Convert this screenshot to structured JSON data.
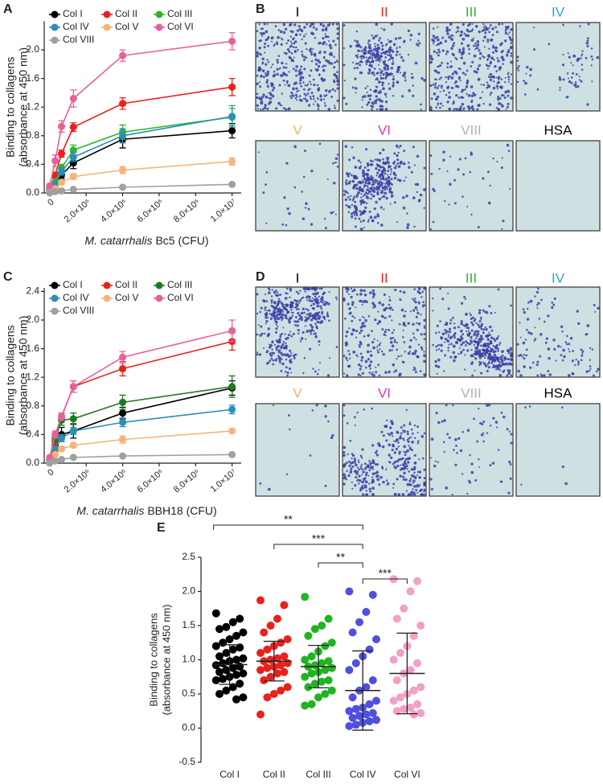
{
  "chart_data": [
    {
      "type": "line",
      "panel": "A",
      "ylabel": [
        "Binding to collagens",
        "(absorbance at 450 nm)"
      ],
      "xlabel_italic": "M. catarrhalis",
      "xlabel": "Bc5 (CFU)",
      "x": [
        0,
        300000,
        650000,
        1300000,
        4000000,
        10000000
      ],
      "xlim": [
        -300000,
        10500000
      ],
      "xticks": [
        0,
        {
          "value": 2000000,
          "label": "2.0×10⁶"
        },
        {
          "value": 4000000,
          "label": "4.0×10⁶"
        },
        {
          "value": 6000000,
          "label": "6.0×10⁶"
        },
        {
          "value": 8000000,
          "label": "8.0×10⁶"
        },
        {
          "value": 10000000,
          "label": "1.0×10⁷"
        }
      ],
      "ylim": [
        0,
        2.4
      ],
      "yticks": [
        {
          "value": 0,
          "label": "0.0"
        },
        0.4,
        0.8,
        1.2,
        1.6,
        {
          "value": 2,
          "label": "2.0"
        }
      ],
      "series": [
        {
          "name": "Col I",
          "color": "#000000",
          "values": [
            0.02,
            0.1,
            0.25,
            0.42,
            0.75,
            0.87
          ],
          "errors": [
            0.01,
            0.03,
            0.05,
            0.08,
            0.12,
            0.1
          ]
        },
        {
          "name": "Col II",
          "color": "#e8211d",
          "values": [
            0.05,
            0.25,
            0.55,
            0.92,
            1.25,
            1.48
          ],
          "errors": [
            0.02,
            0.04,
            0.05,
            0.06,
            0.08,
            0.12
          ]
        },
        {
          "name": "Col III",
          "color": "#2db52d",
          "values": [
            0.03,
            0.15,
            0.35,
            0.6,
            0.85,
            1.06
          ],
          "errors": [
            0.01,
            0.03,
            0.05,
            0.07,
            0.1,
            0.12
          ]
        },
        {
          "name": "Col IV",
          "color": "#2a8fb5",
          "values": [
            0.03,
            0.12,
            0.3,
            0.5,
            0.8,
            1.07
          ],
          "errors": [
            0.01,
            0.03,
            0.05,
            0.06,
            0.1,
            0.15
          ]
        },
        {
          "name": "Col V",
          "color": "#f6b47a",
          "values": [
            0.01,
            0.06,
            0.15,
            0.23,
            0.32,
            0.44
          ],
          "errors": [
            0.01,
            0.02,
            0.03,
            0.04,
            0.05,
            0.05
          ]
        },
        {
          "name": "Col VI",
          "color": "#e8609b",
          "values": [
            0.1,
            0.45,
            0.93,
            1.32,
            1.92,
            2.12
          ],
          "errors": [
            0.02,
            0.08,
            0.08,
            0.12,
            0.08,
            0.12
          ]
        },
        {
          "name": "Col VIII",
          "color": "#a0a0a0",
          "values": [
            0,
            0.02,
            0.03,
            0.05,
            0.08,
            0.12
          ],
          "errors": [
            0.01,
            0.01,
            0.01,
            0.01,
            0.02,
            0.02
          ]
        }
      ]
    },
    {
      "type": "line",
      "panel": "C",
      "ylabel": [
        "Binding  to collagens",
        "(absorbance at 450 nm)"
      ],
      "xlabel_italic": "M. catarrhalis",
      "xlabel": "BBH18 (CFU)",
      "x": [
        0,
        300000,
        650000,
        1300000,
        4000000,
        10000000
      ],
      "xlim": [
        -300000,
        10500000
      ],
      "xticks": [
        0,
        {
          "value": 2000000,
          "label": "2.0×10⁶"
        },
        {
          "value": 4000000,
          "label": "4.0×10⁶"
        },
        {
          "value": 6000000,
          "label": "6.0×10⁶"
        },
        {
          "value": 8000000,
          "label": "8.0×10⁶"
        },
        {
          "value": 10000000,
          "label": "1.0×10⁷"
        }
      ],
      "ylim": [
        0,
        2.45
      ],
      "yticks": [
        {
          "value": 0,
          "label": "0.0"
        },
        0.4,
        0.8,
        1.2,
        1.6,
        {
          "value": 2,
          "label": "2.0"
        },
        2.4
      ],
      "series": [
        {
          "name": "Col I",
          "color": "#000000",
          "values": [
            0.02,
            0.25,
            0.4,
            0.45,
            0.7,
            1.05
          ],
          "errors": [
            0.01,
            0.05,
            0.1,
            0.1,
            0.08,
            0.1
          ]
        },
        {
          "name": "Col II",
          "color": "#e8211d",
          "values": [
            0.05,
            0.3,
            0.65,
            1.07,
            1.32,
            1.7
          ],
          "errors": [
            0.02,
            0.04,
            0.05,
            0.08,
            0.1,
            0.12
          ]
        },
        {
          "name": "Col III",
          "color": "#1e7a1e",
          "values": [
            0.03,
            0.35,
            0.6,
            0.62,
            0.85,
            1.07
          ],
          "errors": [
            0.01,
            0.05,
            0.07,
            0.08,
            0.1,
            0.15
          ]
        },
        {
          "name": "Col IV",
          "color": "#2a8fb5",
          "values": [
            0.03,
            0.2,
            0.35,
            0.45,
            0.57,
            0.75
          ],
          "errors": [
            0.01,
            0.03,
            0.05,
            0.05,
            0.06,
            0.06
          ]
        },
        {
          "name": "Col V",
          "color": "#f6b47a",
          "values": [
            0.01,
            0.12,
            0.2,
            0.25,
            0.33,
            0.45
          ],
          "errors": [
            0.01,
            0.02,
            0.03,
            0.03,
            0.05,
            0.03
          ]
        },
        {
          "name": "Col VI",
          "color": "#e8609b",
          "values": [
            0.08,
            0.4,
            0.65,
            1.07,
            1.48,
            1.85
          ],
          "errors": [
            0.02,
            0.05,
            0.05,
            0.08,
            0.08,
            0.15
          ]
        },
        {
          "name": "Col VIII",
          "color": "#a0a0a0",
          "values": [
            0,
            0.03,
            0.05,
            0.08,
            0.1,
            0.12
          ],
          "errors": [
            0.01,
            0.01,
            0.01,
            0.01,
            0.02,
            0.02
          ]
        }
      ]
    },
    {
      "type": "dot",
      "panel": "E",
      "ylabel": [
        "Binding to collagens",
        "(absorbance at 450 nm)"
      ],
      "categories": [
        "Col I",
        "Col II",
        "Col III",
        "Col IV",
        "Col VI"
      ],
      "colors": [
        "#000000",
        "#e8211d",
        "#1fb51f",
        "#5050e0",
        "#f2a0c8"
      ],
      "ylim": [
        -0.5,
        2.5
      ],
      "yticks": [
        -0.5,
        {
          "value": 0,
          "label": "0.0"
        },
        0.5,
        {
          "value": 1,
          "label": "1.0"
        },
        1.5,
        {
          "value": 2,
          "label": "2.0"
        },
        2.5
      ],
      "points": [
        [
          1.68,
          1.6,
          1.55,
          1.48,
          1.45,
          1.4,
          1.35,
          1.3,
          1.25,
          1.2,
          1.18,
          1.15,
          1.1,
          1.05,
          1.02,
          1.0,
          0.98,
          0.95,
          0.92,
          0.9,
          0.88,
          0.85,
          0.82,
          0.8,
          0.78,
          0.75,
          0.72,
          0.7,
          0.65,
          0.6,
          0.55,
          0.5,
          0.45,
          0.42
        ],
        [
          1.87,
          1.8,
          1.6,
          1.5,
          1.4,
          1.3,
          1.25,
          1.2,
          1.15,
          1.1,
          1.05,
          1.02,
          1.0,
          0.98,
          0.95,
          0.92,
          0.9,
          0.88,
          0.85,
          0.82,
          0.8,
          0.75,
          0.7,
          0.6,
          0.55,
          0.5,
          0.45,
          0.2
        ],
        [
          1.92,
          1.6,
          1.5,
          1.45,
          1.35,
          1.25,
          1.2,
          1.12,
          1.05,
          1.0,
          0.98,
          0.95,
          0.92,
          0.9,
          0.88,
          0.85,
          0.82,
          0.8,
          0.75,
          0.7,
          0.68,
          0.65,
          0.6,
          0.55,
          0.5,
          0.45,
          0.35,
          0.33
        ],
        [
          2.0,
          1.95,
          1.7,
          1.55,
          1.4,
          1.3,
          1.15,
          1.05,
          0.95,
          0.85,
          0.7,
          0.6,
          0.55,
          0.45,
          0.4,
          0.35,
          0.3,
          0.28,
          0.25,
          0.22,
          0.2,
          0.18,
          0.15,
          0.12,
          0.1,
          0.08,
          0.05,
          0.03
        ],
        [
          2.18,
          2.15,
          2.0,
          1.75,
          1.6,
          1.5,
          1.35,
          1.2,
          1.1,
          1.0,
          0.95,
          0.85,
          0.8,
          0.7,
          0.6,
          0.55,
          0.5,
          0.45,
          0.4,
          0.35,
          0.3,
          0.28,
          0.25,
          0.22,
          0.2
        ]
      ],
      "means": [
        0.93,
        0.98,
        0.9,
        0.55,
        0.8
      ],
      "sd": [
        0.29,
        0.29,
        0.31,
        0.58,
        0.59
      ],
      "comparisons": [
        {
          "between": [
            0,
            3
          ],
          "label": "**"
        },
        {
          "between": [
            1,
            3
          ],
          "label": "***"
        },
        {
          "between": [
            2,
            3
          ],
          "label": "**"
        },
        {
          "between": [
            3,
            4
          ],
          "label": "***"
        }
      ]
    }
  ],
  "micrograph_panels": [
    {
      "panel": "B",
      "labels": [
        {
          "text": "I",
          "color": "#000000"
        },
        {
          "text": "II",
          "color": "#e8211d"
        },
        {
          "text": "III",
          "color": "#2db52d"
        },
        {
          "text": "IV",
          "color": "#29a3d6"
        },
        {
          "text": "V",
          "color": "#f5b070"
        },
        {
          "text": "VI",
          "color": "#d63aa8"
        },
        {
          "text": "VIII",
          "color": "#b0b0b0"
        },
        {
          "text": "HSA",
          "color": "#000000"
        }
      ]
    },
    {
      "panel": "D",
      "labels": [
        {
          "text": "I",
          "color": "#000000"
        },
        {
          "text": "II",
          "color": "#e8211d"
        },
        {
          "text": "III",
          "color": "#2db52d"
        },
        {
          "text": "IV",
          "color": "#29a3d6"
        },
        {
          "text": "V",
          "color": "#f5b070"
        },
        {
          "text": "VI",
          "color": "#d63aa8"
        },
        {
          "text": "VIII",
          "color": "#b0b0b0"
        },
        {
          "text": "HSA",
          "color": "#000000"
        }
      ]
    }
  ]
}
